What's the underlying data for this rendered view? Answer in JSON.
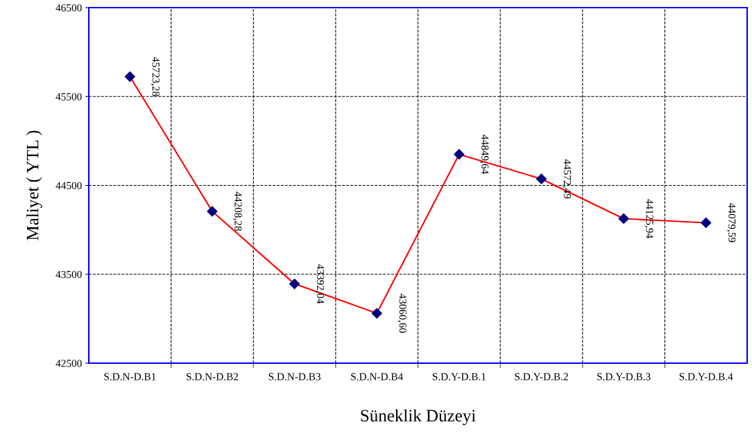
{
  "chart_data": {
    "type": "line",
    "xlabel": "Süneklik Düzeyi",
    "ylabel": "Maliyet ( YTL )",
    "categories": [
      "S.D.N-D.B1",
      "S.D.N-D.B2",
      "S.D.N-D.B3",
      "S.D.N-D.B4",
      "S.D.Y-D.B.1",
      "S.D.Y-D.B.2",
      "S.D.Y-D.B.3",
      "S.D.Y-D.B.4"
    ],
    "series": [
      {
        "color": "#ff0000",
        "values": [
          45723.28,
          44208.28,
          43392.04,
          43060.6,
          44849.64,
          44572.49,
          44125.94,
          44079.59
        ],
        "value_labels": [
          "45723,28",
          "44208,28",
          "43392,04",
          "43060,60",
          "44849,64",
          "44572,49",
          "44125,94",
          "44079,59"
        ]
      }
    ],
    "ylim": [
      42500,
      46500
    ],
    "yticks": [
      42500,
      43500,
      44500,
      45500,
      46500
    ],
    "grid": true,
    "marker": "diamond",
    "line_style": "solid"
  }
}
